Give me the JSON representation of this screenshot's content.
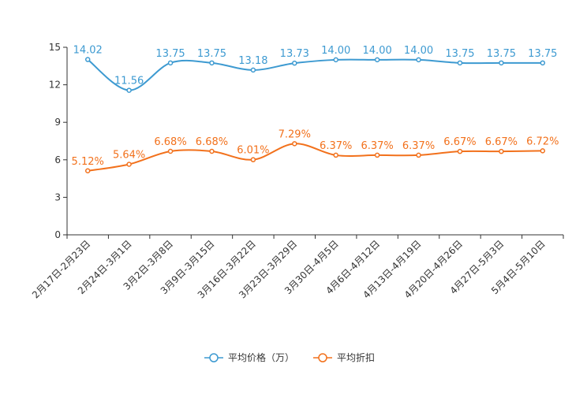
{
  "chart_data": {
    "type": "line",
    "title": "",
    "xlabel": "",
    "ylabel": "",
    "ylim": [
      0,
      15
    ],
    "yticks": [
      "0",
      "3",
      "6",
      "9",
      "12",
      "15"
    ],
    "categories": [
      "2月17日-2月23日",
      "2月24日-3月1日",
      "3月2日-3月8日",
      "3月9日-3月15日",
      "3月16日-3月22日",
      "3月23日-3月29日",
      "3月30日-4月5日",
      "4月6日-4月12日",
      "4月13日-4月19日",
      "4月20日-4月26日",
      "4月27日-5月3日",
      "5月4日-5月10日"
    ],
    "series": [
      {
        "name": "平均价格（万）",
        "color": "#3d9ad1",
        "values": [
          14.02,
          11.56,
          13.75,
          13.75,
          13.18,
          13.73,
          14.0,
          14.0,
          14.0,
          13.75,
          13.75,
          13.75
        ],
        "labels": [
          "14.02",
          "11.56",
          "13.75",
          "13.75",
          "13.18",
          "13.73",
          "14.00",
          "14.00",
          "14.00",
          "13.75",
          "13.75",
          "13.75"
        ]
      },
      {
        "name": "平均折扣",
        "color": "#f2711c",
        "values": [
          5.12,
          5.64,
          6.68,
          6.68,
          6.01,
          7.29,
          6.37,
          6.37,
          6.37,
          6.67,
          6.67,
          6.72
        ],
        "labels": [
          "5.12%",
          "5.64%",
          "6.68%",
          "6.68%",
          "6.01%",
          "7.29%",
          "6.37%",
          "6.37%",
          "6.37%",
          "6.67%",
          "6.67%",
          "6.72%"
        ]
      }
    ],
    "legend_position": "bottom-center"
  }
}
